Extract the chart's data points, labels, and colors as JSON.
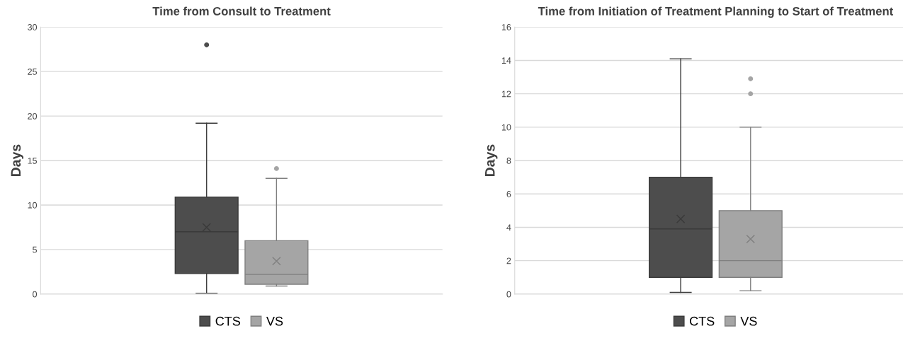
{
  "chart_data": [
    {
      "type": "box",
      "title": "Time from Consult to Treatment",
      "ylabel": "Days",
      "categories": [
        null
      ],
      "ylim": [
        0,
        30
      ],
      "yticks": [
        0,
        5,
        10,
        15,
        20,
        25,
        30
      ],
      "grid": "y",
      "legend": "bottom",
      "marker": "cross",
      "series": [
        {
          "name": "CTS",
          "color": "#4d4d4d",
          "boxes": [
            {
              "low": 0.1,
              "q1": 2.3,
              "median": 7.0,
              "q3": 10.9,
              "high": 19.2,
              "mean": 7.5,
              "outliers": [
                28
              ]
            }
          ]
        },
        {
          "name": "VS",
          "color": "#a5a5a5",
          "boxes": [
            {
              "low": 0.9,
              "q1": 1.1,
              "median": 2.2,
              "q3": 6.0,
              "high": 13.0,
              "mean": 3.7,
              "outliers": [
                14.1
              ]
            }
          ]
        }
      ]
    },
    {
      "type": "box",
      "title": "Time from Initiation of Treatment Planning to Start of Treatment",
      "ylabel": "Days",
      "categories": [
        null
      ],
      "ylim": [
        0,
        16
      ],
      "yticks": [
        0,
        2,
        4,
        6,
        8,
        10,
        12,
        14,
        16
      ],
      "grid": "y",
      "legend": "bottom",
      "marker": "cross",
      "series": [
        {
          "name": "CTS",
          "color": "#4d4d4d",
          "boxes": [
            {
              "low": 0.1,
              "q1": 1.0,
              "median": 3.9,
              "q3": 7.0,
              "high": 14.1,
              "mean": 4.5
            }
          ]
        },
        {
          "name": "VS",
          "color": "#a5a5a5",
          "boxes": [
            {
              "low": 0.2,
              "q1": 1.0,
              "median": 2.0,
              "q3": 5.0,
              "high": 10.0,
              "mean": 3.3,
              "outliers": [
                12,
                12.9
              ]
            }
          ]
        }
      ]
    }
  ]
}
